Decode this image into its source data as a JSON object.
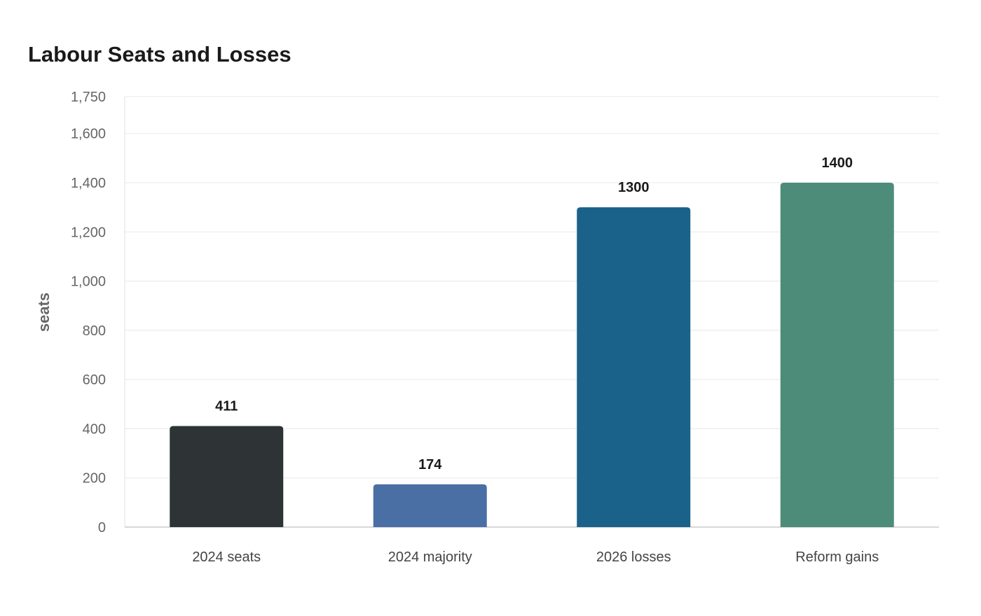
{
  "chart_data": {
    "type": "bar",
    "title": "Labour Seats and Losses",
    "xlabel": "",
    "ylabel": "seats",
    "categories": [
      "2024 seats",
      "2024 majority",
      "2026 losses",
      "Reform gains"
    ],
    "values": [
      411,
      174,
      1300,
      1400
    ],
    "data_labels": [
      "411",
      "174",
      "1300",
      "1400"
    ],
    "colors": [
      "#2e3436",
      "#4a6fa5",
      "#1a6289",
      "#4e8c7a"
    ],
    "ylim": [
      0,
      1750
    ],
    "yticks": [
      0,
      200,
      400,
      600,
      800,
      1000,
      1200,
      1400,
      1600,
      1750
    ],
    "ytick_labels": [
      "0",
      "200",
      "400",
      "600",
      "800",
      "1,000",
      "1,200",
      "1,400",
      "1,600",
      "1,750"
    ],
    "grid": true,
    "legend": "none"
  }
}
